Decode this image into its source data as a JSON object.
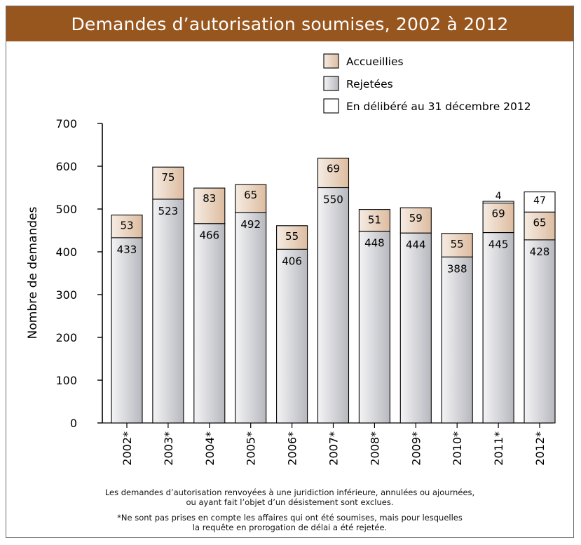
{
  "title": "Demandes d’autorisation soumises, 2002 à 2012",
  "footnotes": {
    "note1": [
      "Les demandes d’autorisation renvoyées à une juridiction inférieure, annulées ou ajournées,",
      "ou ayant fait l’objet d’un désistement sont exclues."
    ],
    "note2": [
      "*Ne sont pas prises en compte les affaires qui ont été soumises, mais pour lesquelles",
      "la requête en prorogation de délai a été rejetée."
    ]
  },
  "colors": {
    "title_band": "#98561f",
    "granted_light": "#f6ece3",
    "granted_dark": "#ddbca0",
    "dismissed_light": "#f4f4f6",
    "dismissed_dark": "#b7b8be",
    "reserved": "#ffffff"
  },
  "chart_data": {
    "type": "bar",
    "stacked": true,
    "title": "Demandes d’autorisation soumises, 2002 à 2012",
    "xlabel": "",
    "ylabel": "Nombre de demandes",
    "ylim": [
      0,
      700
    ],
    "yticks": [
      0,
      100,
      200,
      300,
      400,
      500,
      600,
      700
    ],
    "grid": false,
    "legend_position": "top-right",
    "categories": [
      "2002*",
      "2003*",
      "2004*",
      "2005*",
      "2006*",
      "2007*",
      "2008*",
      "2009*",
      "2010*",
      "2011*",
      "2012*"
    ],
    "series": [
      {
        "name": "Rejetées",
        "values": [
          433,
          523,
          466,
          492,
          406,
          550,
          448,
          444,
          388,
          445,
          428
        ]
      },
      {
        "name": "Accueillies",
        "values": [
          53,
          75,
          83,
          65,
          55,
          69,
          51,
          59,
          55,
          69,
          65
        ]
      },
      {
        "name": "En délibéré au 31 décembre 2012",
        "values": [
          0,
          0,
          0,
          0,
          0,
          0,
          0,
          0,
          0,
          4,
          47
        ]
      }
    ],
    "legend_order": [
      "Accueillies",
      "Rejetées",
      "En délibéré au 31 décembre 2012"
    ]
  }
}
